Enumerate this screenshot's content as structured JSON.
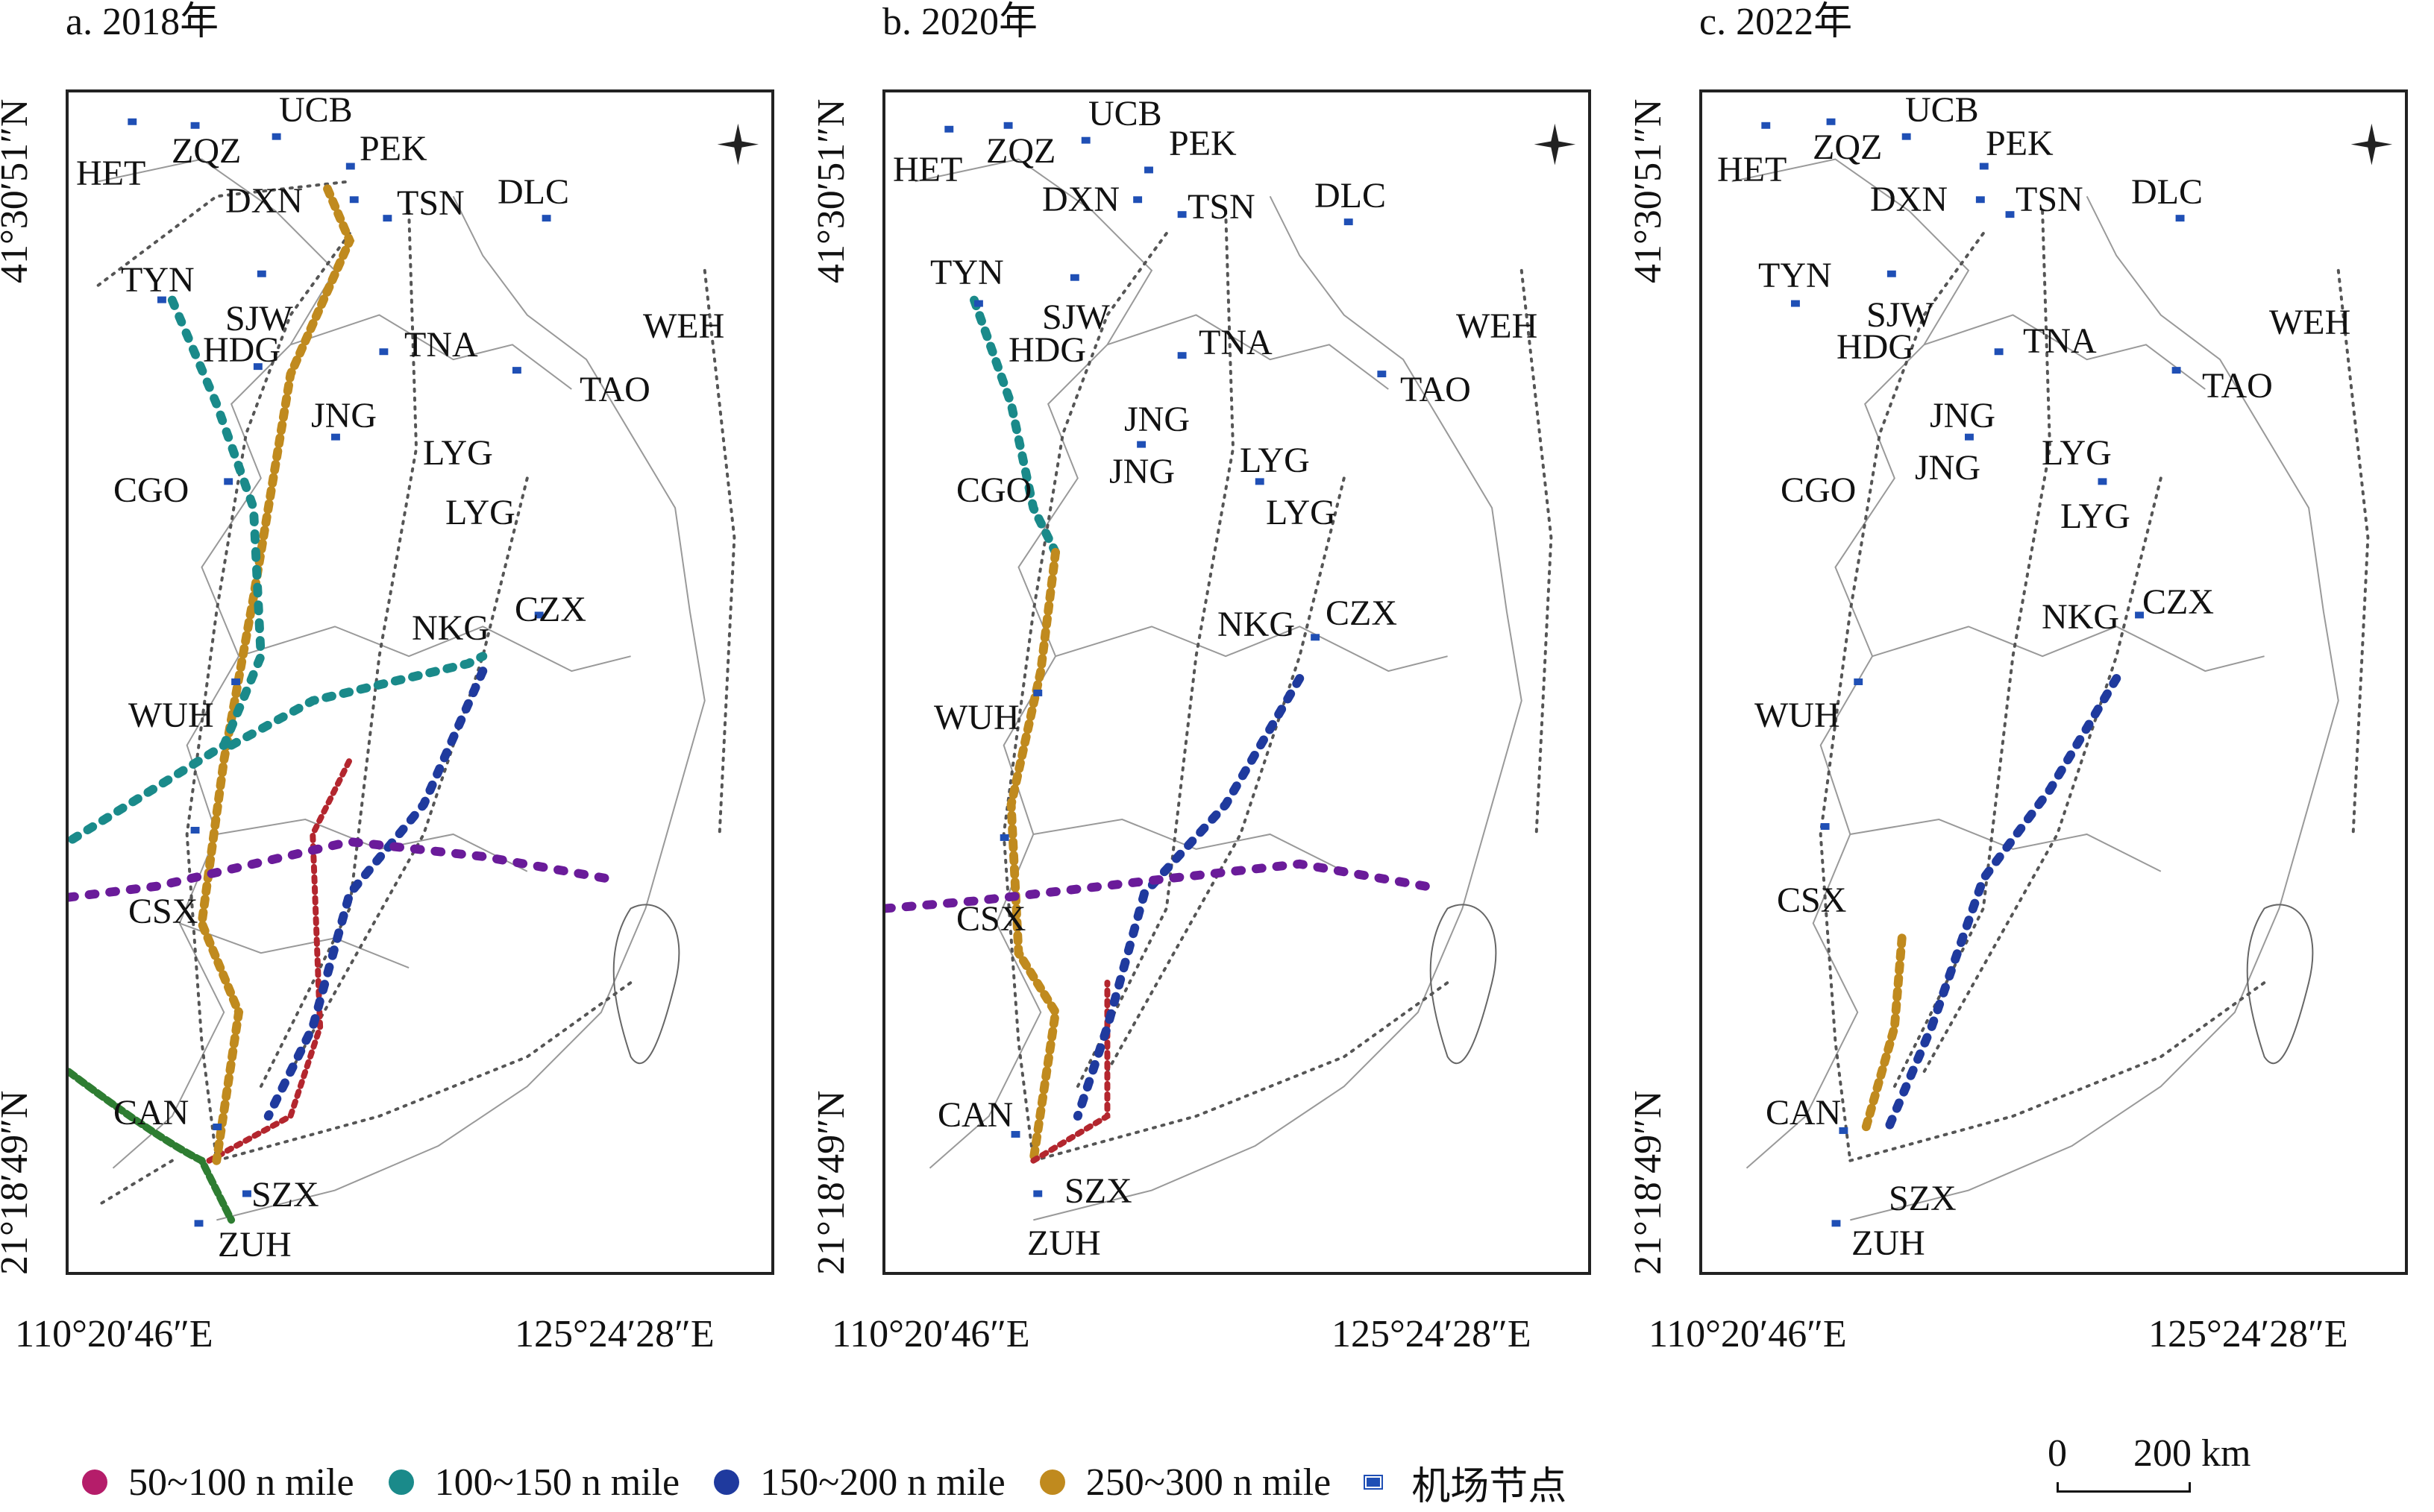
{
  "panels": [
    {
      "title": "a. 2018年"
    },
    {
      "title": "b. 2020年"
    },
    {
      "title": "c. 2022年"
    }
  ],
  "axes": {
    "lat_top": "41°30′51″N",
    "lat_bottom": "21°18′49″N",
    "lon_left": "110°20′46″E",
    "lon_right": "125°24′28″E"
  },
  "airports": [
    "UCB",
    "HET",
    "ZQZ",
    "PEK",
    "DXN",
    "TSN",
    "DLC",
    "TYN",
    "SJW",
    "HDG",
    "TNA",
    "WEH",
    "TAO",
    "JNG",
    "LYG",
    "CGO",
    "NKG",
    "CZX",
    "WUH",
    "CSX",
    "CAN",
    "SZX",
    "ZUH"
  ],
  "legend": {
    "items": [
      {
        "label": "50~100 n mile",
        "color": "#b51d6a"
      },
      {
        "label": "100~150 n mile",
        "color": "#1a8a8a"
      },
      {
        "label": "150~200 n mile",
        "color": "#1f3a9e"
      },
      {
        "label": "250~300 n mile",
        "color": "#c08a1e"
      },
      {
        "label": "机场节点",
        "color": "#1f4fb5",
        "icon": "airport-node-icon"
      }
    ]
  },
  "scalebar": {
    "zero": "0",
    "distance": "200 km"
  },
  "colors": {
    "band_50_100": "#b51d6a",
    "band_100_150": "#1a8a8a",
    "band_150_200": "#1f3a9e",
    "band_250_300": "#c08a1e",
    "route_green": "#2e7d32",
    "route_red": "#b3262e",
    "route_purple": "#6a1b9a",
    "base_route": "#555555"
  }
}
